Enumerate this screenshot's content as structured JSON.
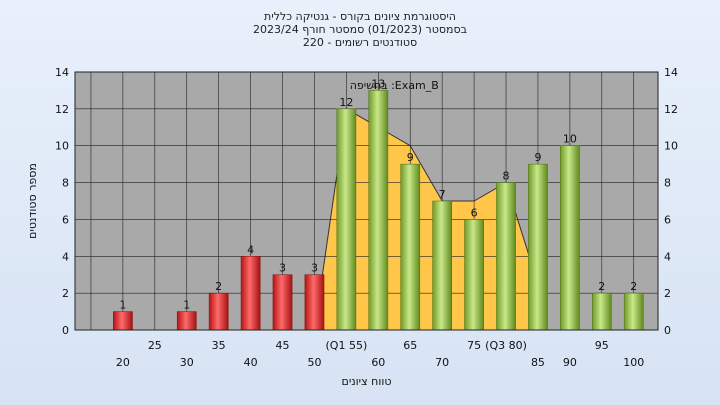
{
  "chart_data": {
    "type": "bar",
    "title_lines": [
      "היסטוגרמת ציונים בקורס - גנטיקה כללית",
      "בסמסטר  (01/2023)  סמסטר חורף  2023/24",
      "סטודנטים רשומים - 220"
    ],
    "xlabel": "טווח ציונים",
    "ylabel": "מספר סטודנטים",
    "ylim": [
      0,
      14
    ],
    "yticks": [
      0,
      2,
      4,
      6,
      8,
      10,
      12,
      14
    ],
    "grid": true,
    "series_label": "בחשיפה :Exam_B",
    "x_tick_row1": [
      "25",
      "35",
      "45",
      "(Q1 55)",
      "65",
      "75",
      "(Q3 80)",
      "95"
    ],
    "x_tick_row2": [
      "20",
      "30",
      "40",
      "50",
      "60",
      "70",
      "85",
      "90",
      "100"
    ],
    "bars": [
      {
        "x": 20,
        "value": 1,
        "group": "fail"
      },
      {
        "x": 30,
        "value": 1,
        "group": "fail"
      },
      {
        "x": 35,
        "value": 2,
        "group": "fail"
      },
      {
        "x": 40,
        "value": 4,
        "group": "fail"
      },
      {
        "x": 45,
        "value": 3,
        "group": "fail"
      },
      {
        "x": 50,
        "value": 3,
        "group": "fail"
      },
      {
        "x": 55,
        "value": 12,
        "group": "pass"
      },
      {
        "x": 60,
        "value": 13,
        "group": "pass"
      },
      {
        "x": 65,
        "value": 9,
        "group": "pass"
      },
      {
        "x": 70,
        "value": 7,
        "group": "pass"
      },
      {
        "x": 75,
        "value": 6,
        "group": "pass"
      },
      {
        "x": 80,
        "value": 8,
        "group": "pass"
      },
      {
        "x": 85,
        "value": 9,
        "group": "pass"
      },
      {
        "x": 90,
        "value": 10,
        "group": "pass"
      },
      {
        "x": 95,
        "value": 2,
        "group": "pass"
      },
      {
        "x": 100,
        "value": 2,
        "group": "pass"
      }
    ],
    "overlay_area": [
      {
        "x": 50,
        "value": 0
      },
      {
        "x": 55,
        "value": 12
      },
      {
        "x": 60,
        "value": 11
      },
      {
        "x": 65,
        "value": 10
      },
      {
        "x": 70,
        "value": 7
      },
      {
        "x": 75,
        "value": 7
      },
      {
        "x": 80,
        "value": 8
      },
      {
        "x": 85,
        "value": 2.5
      }
    ],
    "colors": {
      "fail": "#e02a2a",
      "pass": "#8fbf3a",
      "overlay": "#ffc64a",
      "plot_bg": "#a9a9a9",
      "grid": "#222222"
    }
  }
}
